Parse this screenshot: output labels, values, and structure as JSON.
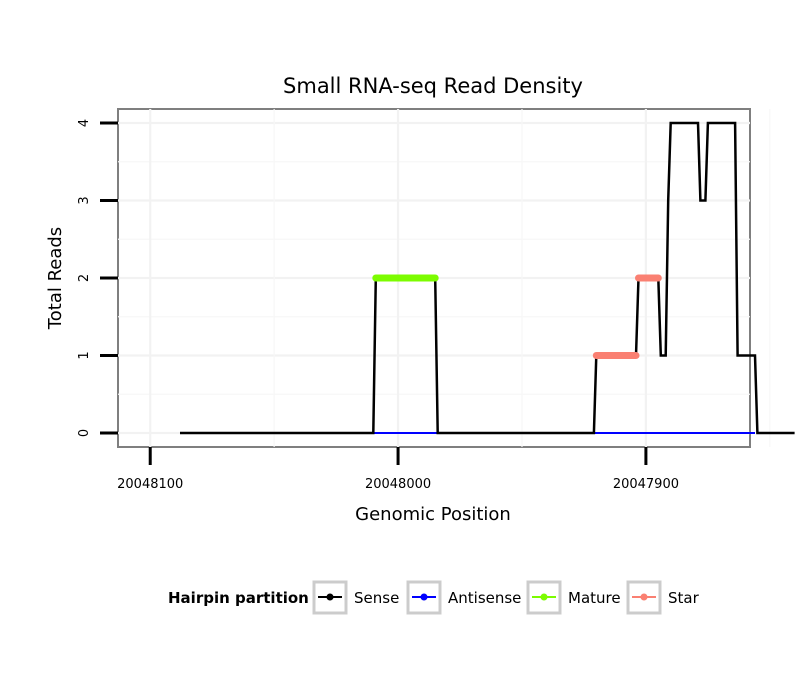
{
  "chart_data": {
    "type": "line",
    "title": "Small RNA-seq Read Density",
    "xlabel": "Genomic Position",
    "ylabel": "Total Reads",
    "x_reversed": true,
    "xlim": [
      20048113,
      20047858
    ],
    "ylim": [
      0,
      4
    ],
    "x_ticks": [
      {
        "value": 20048100,
        "label": "20048100"
      },
      {
        "value": 20048000,
        "label": "20048000"
      },
      {
        "value": 20047900,
        "label": "20047900"
      }
    ],
    "y_ticks": [
      {
        "value": 0,
        "label": "0"
      },
      {
        "value": 1,
        "label": "1"
      },
      {
        "value": 2,
        "label": "2"
      },
      {
        "value": 3,
        "label": "3"
      },
      {
        "value": 4,
        "label": "4"
      }
    ],
    "grid": true,
    "legend": {
      "title": "Hairpin partition",
      "position": "bottom",
      "entries": [
        {
          "name": "Sense",
          "color": "#000000"
        },
        {
          "name": "Antisense",
          "color": "#0000ff"
        },
        {
          "name": "Mature",
          "color": "#7cfc00"
        },
        {
          "name": "Star",
          "color": "#fa8072"
        }
      ]
    },
    "series": [
      {
        "name": "Sense",
        "color": "#000000",
        "points": [
          [
            20048088,
            0
          ],
          [
            20048010,
            0
          ],
          [
            20048009,
            2
          ],
          [
            20047985,
            2
          ],
          [
            20047984,
            0
          ],
          [
            20047921,
            0
          ],
          [
            20047920,
            1
          ],
          [
            20047904,
            1
          ],
          [
            20047903,
            2
          ],
          [
            20047895,
            2
          ],
          [
            20047894,
            1
          ],
          [
            20047892,
            1
          ],
          [
            20047891,
            3
          ],
          [
            20047890,
            4
          ],
          [
            20047879,
            4
          ],
          [
            20047878,
            3
          ],
          [
            20047876,
            3
          ],
          [
            20047875,
            4
          ],
          [
            20047864,
            4
          ],
          [
            20047863,
            1
          ],
          [
            20047856,
            1
          ],
          [
            20047855,
            0
          ],
          [
            20047840,
            0
          ]
        ]
      },
      {
        "name": "Antisense",
        "color": "#0000ff",
        "points": [
          [
            20048010,
            0
          ],
          [
            20047856,
            0
          ]
        ]
      },
      {
        "name": "Mature",
        "color": "#7cfc00",
        "points": [
          [
            20048009,
            2
          ],
          [
            20047985,
            2
          ]
        ]
      },
      {
        "name": "Star",
        "color": "#fa8072",
        "segments": [
          [
            [
              20047920,
              1
            ],
            [
              20047904,
              1
            ]
          ],
          [
            [
              20047903,
              2
            ],
            [
              20047895,
              2
            ]
          ]
        ]
      }
    ]
  }
}
